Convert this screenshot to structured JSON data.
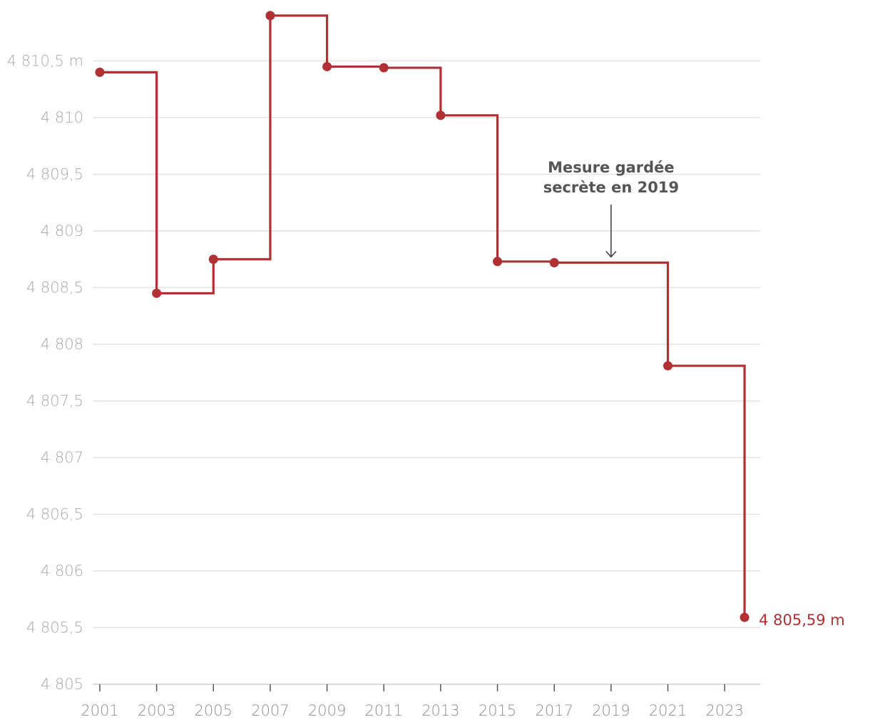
{
  "chart_data": {
    "type": "line",
    "step": "post",
    "x": [
      2001,
      2003,
      2005,
      2007,
      2009,
      2011,
      2013,
      2015,
      2017,
      2021,
      2023.7
    ],
    "series": [
      {
        "values": [
          4810.4,
          4808.45,
          4808.75,
          4810.9,
          4810.45,
          4810.44,
          4810.02,
          4808.73,
          4808.72,
          4807.81,
          4805.59
        ],
        "color": "#b03033"
      }
    ],
    "step_end_x": 2021,
    "xlim": [
      2000.75,
      2024.25
    ],
    "ylim": [
      4805,
      4811
    ],
    "x_ticks": [
      2001,
      2003,
      2005,
      2007,
      2009,
      2011,
      2013,
      2015,
      2017,
      2019,
      2021,
      2023
    ],
    "x_tick_labels": [
      "2001",
      "2003",
      "2005",
      "2007",
      "2009",
      "2011",
      "2013",
      "2015",
      "2017",
      "2019",
      "2021",
      "2023"
    ],
    "y_ticks": [
      4805,
      4805.5,
      4806,
      4806.5,
      4807,
      4807.5,
      4808,
      4808.5,
      4809,
      4809.5,
      4810,
      4810.5
    ],
    "y_tick_labels": [
      "4 805",
      "4 805,5",
      "4 806",
      "4 806,5",
      "4 807",
      "4 807,5",
      "4 808",
      "4 808,5",
      "4 809",
      "4 809,5",
      "4 810",
      "4 810,5 m"
    ],
    "grid": true,
    "annotations": [
      {
        "lines": [
          "Mesure gardée",
          "secrète en 2019"
        ],
        "x": 2019,
        "arrow_to_y": 4808.72
      }
    ],
    "end_label": "4 805,59 m"
  }
}
